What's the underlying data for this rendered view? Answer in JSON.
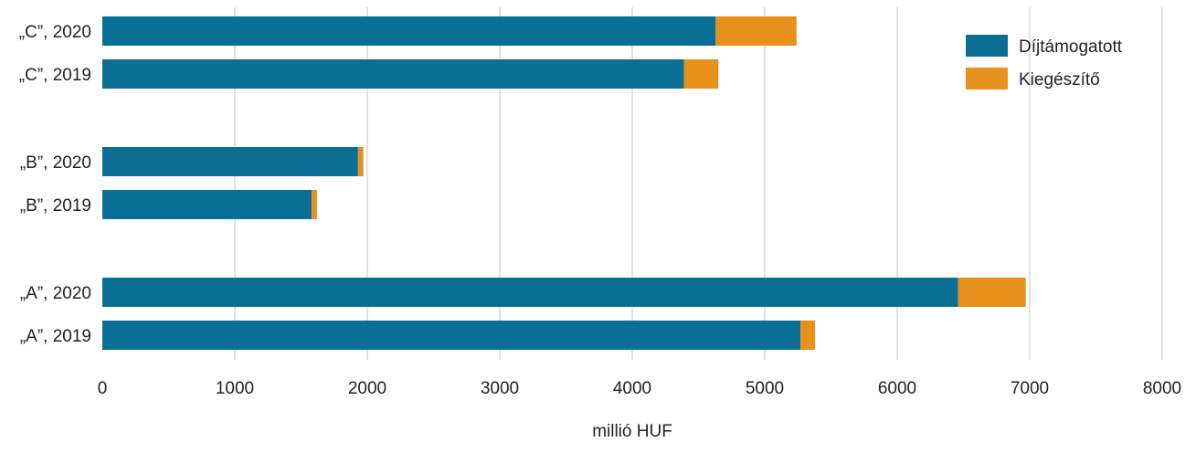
{
  "chart_data": {
    "type": "bar",
    "orientation": "horizontal",
    "stacked": true,
    "categories": [
      "„C”, 2020",
      "„C”, 2019",
      "„B”, 2020",
      "„B”, 2019",
      "„A”, 2020",
      "„A”, 2019"
    ],
    "series": [
      {
        "name": "Díjtámogatott",
        "color": "#0a6f94",
        "values": [
          4630,
          4390,
          1930,
          1580,
          6460,
          5270
        ]
      },
      {
        "name": "Kiegészítő",
        "color": "#e8901c",
        "values": [
          610,
          260,
          40,
          40,
          510,
          110
        ]
      }
    ],
    "xlabel": "millió HUF",
    "xlim": [
      0,
      8000
    ],
    "xticks": [
      "0",
      "1000",
      "2000",
      "3000",
      "4000",
      "5000",
      "6000",
      "7000",
      "8000"
    ],
    "grid": "vertical",
    "legend_position": "top-right"
  }
}
